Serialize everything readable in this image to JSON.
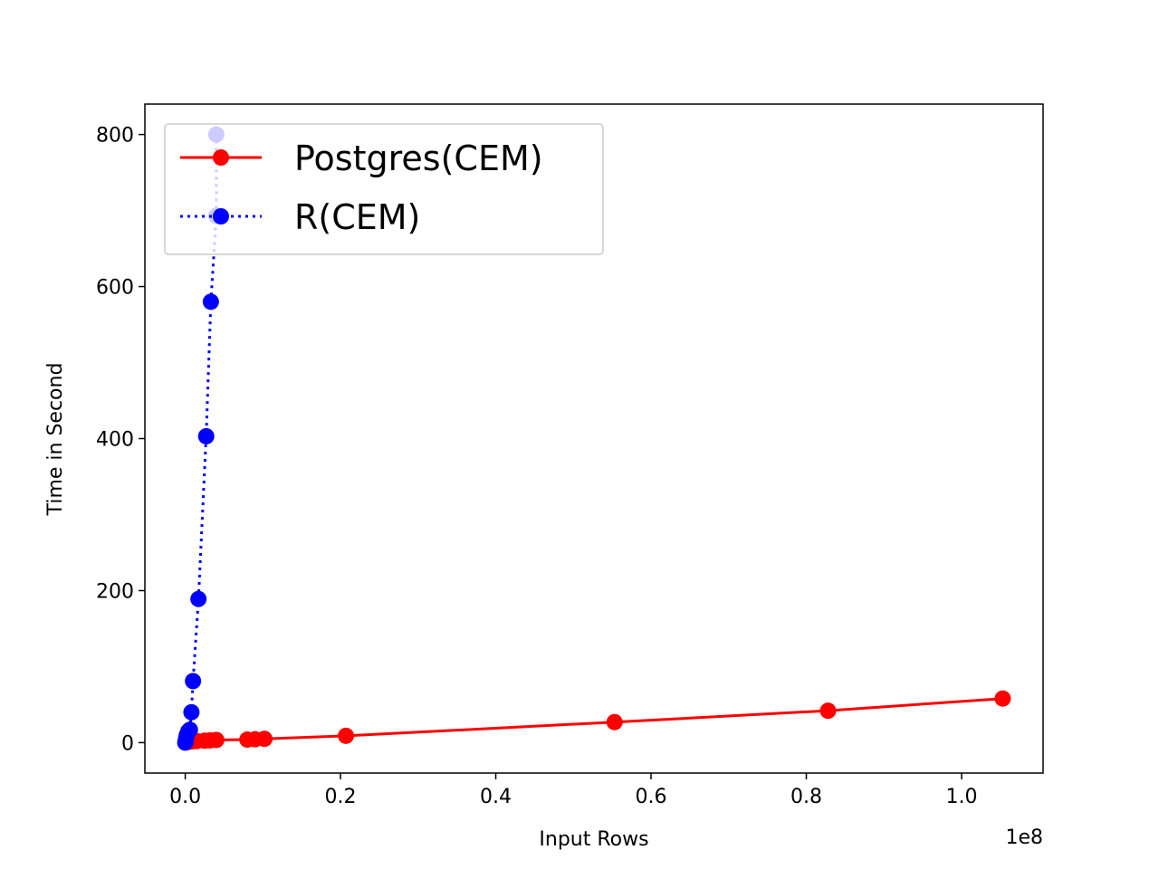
{
  "chart_data": {
    "type": "line",
    "title": "",
    "xlabel": "Input Rows",
    "ylabel": "Time in Second",
    "x_offset_label": "1e8",
    "xlim": [
      -5200000,
      110500000
    ],
    "ylim": [
      -40,
      840
    ],
    "x_scale_factor": 100000000,
    "x_ticks": [
      0,
      20000000,
      40000000,
      60000000,
      80000000,
      100000000
    ],
    "x_tick_labels": [
      "0.0",
      "0.2",
      "0.4",
      "0.6",
      "0.8",
      "1.0"
    ],
    "y_ticks": [
      0,
      200,
      400,
      600,
      800
    ],
    "y_tick_labels": [
      "0",
      "200",
      "400",
      "600",
      "800"
    ],
    "grid": false,
    "legend_position": "upper-left",
    "series": [
      {
        "name": "Postgres(CEM)",
        "color": "#ff0000",
        "line_style": "solid",
        "x": [
          100000,
          200000,
          400000,
          800000,
          1500000,
          2500000,
          3200000,
          4000000,
          8000000,
          9000000,
          10200000,
          20700000,
          55300000,
          82800000,
          105300000
        ],
        "y": [
          0.5,
          0.8,
          1,
          1.5,
          2,
          2.5,
          3,
          3.5,
          4,
          4.5,
          5,
          9,
          27,
          42,
          58
        ]
      },
      {
        "name": "R(CEM)",
        "color": "#0000ff",
        "line_style": "dotted",
        "x": [
          0,
          50000,
          100000,
          200000,
          400000,
          600000,
          800000,
          1000000,
          1700000,
          2700000,
          3300000,
          4000000,
          4000000
        ],
        "y": [
          0,
          2,
          5,
          10,
          15,
          17,
          40,
          81,
          189,
          403,
          580,
          693,
          800
        ]
      }
    ]
  }
}
